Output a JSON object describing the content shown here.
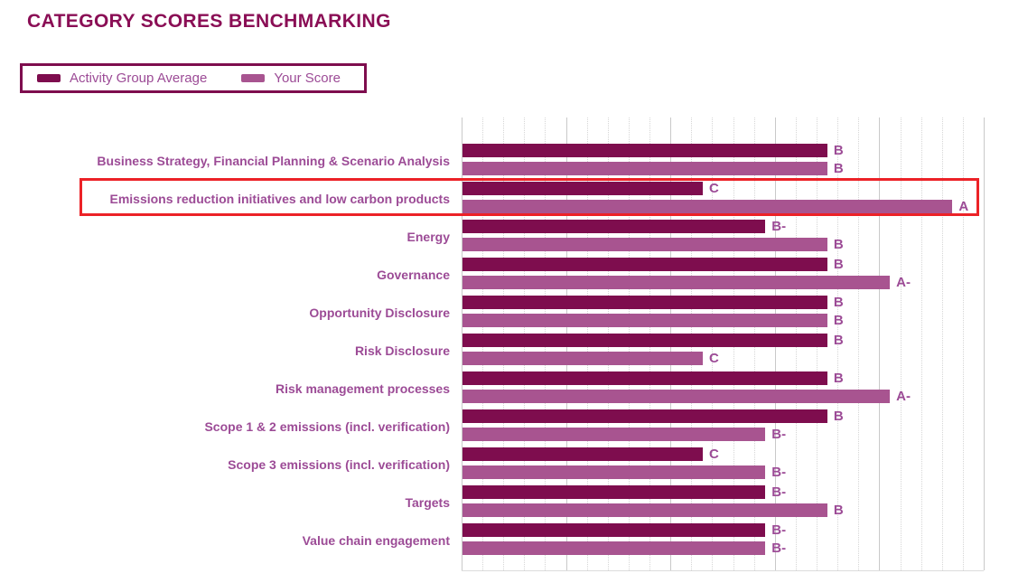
{
  "title": "CATEGORY SCORES BENCHMARKING",
  "legend": {
    "average_label": "Activity Group Average",
    "your_score_label": "Your Score"
  },
  "colors": {
    "average_bar": "#7E0D4E",
    "your_score_bar": "#A85490",
    "label_text": "#9C4B96",
    "title_text": "#8A0E55",
    "highlight_border": "#EC2227"
  },
  "chart_data": {
    "type": "bar",
    "orientation": "horizontal",
    "legend_position": "top-left",
    "grid": "vertical-dotted",
    "series_names": [
      "Activity Group Average",
      "Your Score"
    ],
    "grade_scale_percent": {
      "C": 46.1,
      "B-": 58.1,
      "B": 70.0,
      "A-": 82.0,
      "A": 94.0
    },
    "highlighted_category": "Emissions reduction initiatives and low carbon products",
    "categories": [
      {
        "label": "Business Strategy, Financial Planning & Scenario Analysis",
        "average": "B",
        "your_score": "B",
        "highlighted": false
      },
      {
        "label": "Emissions reduction initiatives and low carbon products",
        "average": "C",
        "your_score": "A",
        "highlighted": true
      },
      {
        "label": "Energy",
        "average": "B-",
        "your_score": "B",
        "highlighted": false
      },
      {
        "label": "Governance",
        "average": "B",
        "your_score": "A-",
        "highlighted": false
      },
      {
        "label": "Opportunity Disclosure",
        "average": "B",
        "your_score": "B",
        "highlighted": false
      },
      {
        "label": "Risk Disclosure",
        "average": "B",
        "your_score": "C",
        "highlighted": false
      },
      {
        "label": "Risk management processes",
        "average": "B",
        "your_score": "A-",
        "highlighted": false
      },
      {
        "label": "Scope 1 & 2 emissions (incl. verification)",
        "average": "B",
        "your_score": "B-",
        "highlighted": false
      },
      {
        "label": "Scope 3 emissions (incl. verification)",
        "average": "C",
        "your_score": "B-",
        "highlighted": false
      },
      {
        "label": "Targets",
        "average": "B-",
        "your_score": "B",
        "highlighted": false
      },
      {
        "label": "Value chain engagement",
        "average": "B-",
        "your_score": "B-",
        "highlighted": false
      }
    ],
    "gridlines": {
      "major_count": 6,
      "minor_between_majors": 4
    }
  }
}
